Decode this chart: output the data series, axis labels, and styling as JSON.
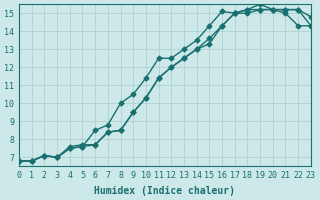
{
  "xlabel": "Humidex (Indice chaleur)",
  "ylabel": "",
  "xlim": [
    0,
    23
  ],
  "ylim": [
    6.5,
    15.5
  ],
  "xticks": [
    0,
    1,
    2,
    3,
    4,
    5,
    6,
    7,
    8,
    9,
    10,
    11,
    12,
    13,
    14,
    15,
    16,
    17,
    18,
    19,
    20,
    21,
    22,
    23
  ],
  "yticks": [
    7,
    8,
    9,
    10,
    11,
    12,
    13,
    14,
    15
  ],
  "background_color": "#cce8e8",
  "grid_color": "#aacccc",
  "line_color": "#1a7070",
  "curve1_x": [
    0,
    1,
    2,
    3,
    4,
    5,
    6,
    7,
    8,
    9,
    10,
    11,
    12,
    13,
    14,
    15,
    16,
    17,
    18,
    19,
    20,
    21,
    22,
    23
  ],
  "curve1_y": [
    6.8,
    6.8,
    7.1,
    7.0,
    7.6,
    7.7,
    7.7,
    8.4,
    8.5,
    9.5,
    10.3,
    11.4,
    12.0,
    12.5,
    13.0,
    13.3,
    14.3,
    15.0,
    15.0,
    15.2,
    15.2,
    15.2,
    15.2,
    14.3
  ],
  "curve2_x": [
    0,
    1,
    2,
    3,
    4,
    5,
    6,
    7,
    8,
    9,
    10,
    11,
    12,
    13,
    14,
    15,
    16,
    17,
    18,
    19,
    20,
    21,
    22,
    23
  ],
  "curve2_y": [
    6.8,
    6.8,
    7.1,
    7.0,
    7.5,
    7.6,
    8.5,
    8.8,
    10.0,
    10.5,
    11.4,
    12.5,
    12.5,
    13.0,
    13.5,
    14.3,
    15.1,
    15.0,
    15.2,
    15.2,
    15.2,
    15.0,
    14.3,
    14.3
  ],
  "curve3_x": [
    0,
    1,
    2,
    3,
    4,
    5,
    6,
    7,
    8,
    9,
    10,
    11,
    12,
    13,
    14,
    15,
    16,
    17,
    18,
    19,
    20,
    21,
    22,
    23
  ],
  "curve3_y": [
    6.8,
    6.8,
    7.1,
    7.0,
    7.5,
    7.6,
    7.7,
    8.4,
    8.5,
    9.5,
    10.3,
    11.4,
    12.0,
    12.5,
    13.0,
    13.6,
    14.3,
    15.0,
    15.2,
    15.5,
    15.2,
    15.2,
    15.2,
    14.8
  ],
  "line_width": 1.0,
  "marker": "D",
  "marker_size": 2.5,
  "font_family": "monospace"
}
